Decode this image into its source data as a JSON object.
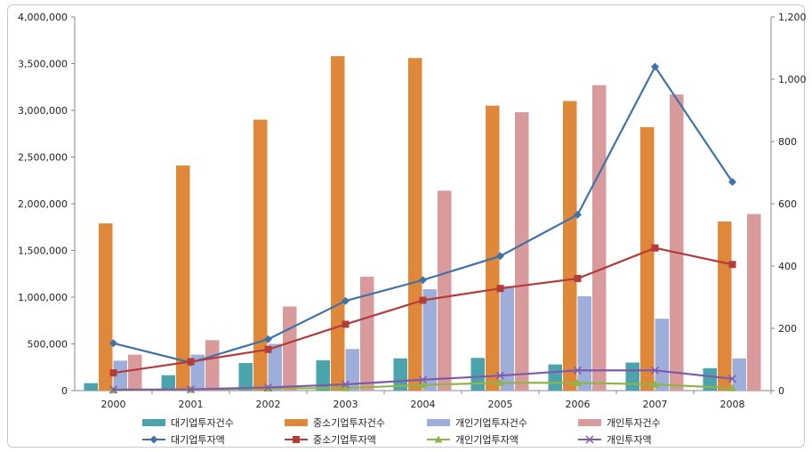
{
  "chart_data": {
    "type": "bar",
    "categories": [
      "2000",
      "2001",
      "2002",
      "2003",
      "2004",
      "2005",
      "2006",
      "2007",
      "2008"
    ],
    "y_left": {
      "range": [
        0,
        4000000
      ],
      "ticks": [
        "0",
        "500,000",
        "1,000,000",
        "1,500,000",
        "2,000,000",
        "2,500,000",
        "3,000,000",
        "3,500,000",
        "4,000,000"
      ]
    },
    "y_right": {
      "range": [
        0,
        1200
      ],
      "ticks": [
        "0",
        "200",
        "400",
        "600",
        "800",
        "1,000",
        "1,200"
      ]
    },
    "bar_series": [
      {
        "name": "대기업투자건수",
        "color": "#4aa3ad",
        "values": [
          80000,
          165000,
          295000,
          325000,
          345000,
          350000,
          280000,
          300000,
          240000
        ]
      },
      {
        "name": "중소기업투자건수",
        "color": "#e0883a",
        "values": [
          1790000,
          2410000,
          2900000,
          3580000,
          3560000,
          3050000,
          3100000,
          2820000,
          1810000
        ]
      },
      {
        "name": "개인기업투자건수",
        "color": "#9daedb",
        "values": [
          320000,
          385000,
          500000,
          445000,
          1085000,
          1120000,
          1010000,
          770000,
          345000
        ]
      },
      {
        "name": "개인투자건수",
        "color": "#d99a9c",
        "values": [
          385000,
          540000,
          900000,
          1220000,
          2140000,
          2980000,
          3270000,
          3170000,
          1890000
        ]
      }
    ],
    "line_series": [
      {
        "name": "대기업투자액",
        "color": "#3f72a8",
        "marker": "diamond",
        "values": [
          152,
          90,
          165,
          288,
          355,
          432,
          565,
          1040,
          670
        ]
      },
      {
        "name": "중소기업투자액",
        "color": "#b43c3a",
        "marker": "square",
        "values": [
          57,
          93,
          132,
          213,
          290,
          328,
          360,
          458,
          405
        ]
      },
      {
        "name": "개인기업투자액",
        "color": "#8fb54a",
        "marker": "triangle",
        "values": [
          1,
          3,
          7,
          8,
          18,
          25,
          25,
          20,
          8
        ]
      },
      {
        "name": "개인투자액",
        "color": "#7e5ba8",
        "marker": "x",
        "values": [
          3,
          4,
          10,
          20,
          35,
          48,
          65,
          65,
          38
        ]
      }
    ],
    "legend_position": "bottom",
    "grid": false
  }
}
